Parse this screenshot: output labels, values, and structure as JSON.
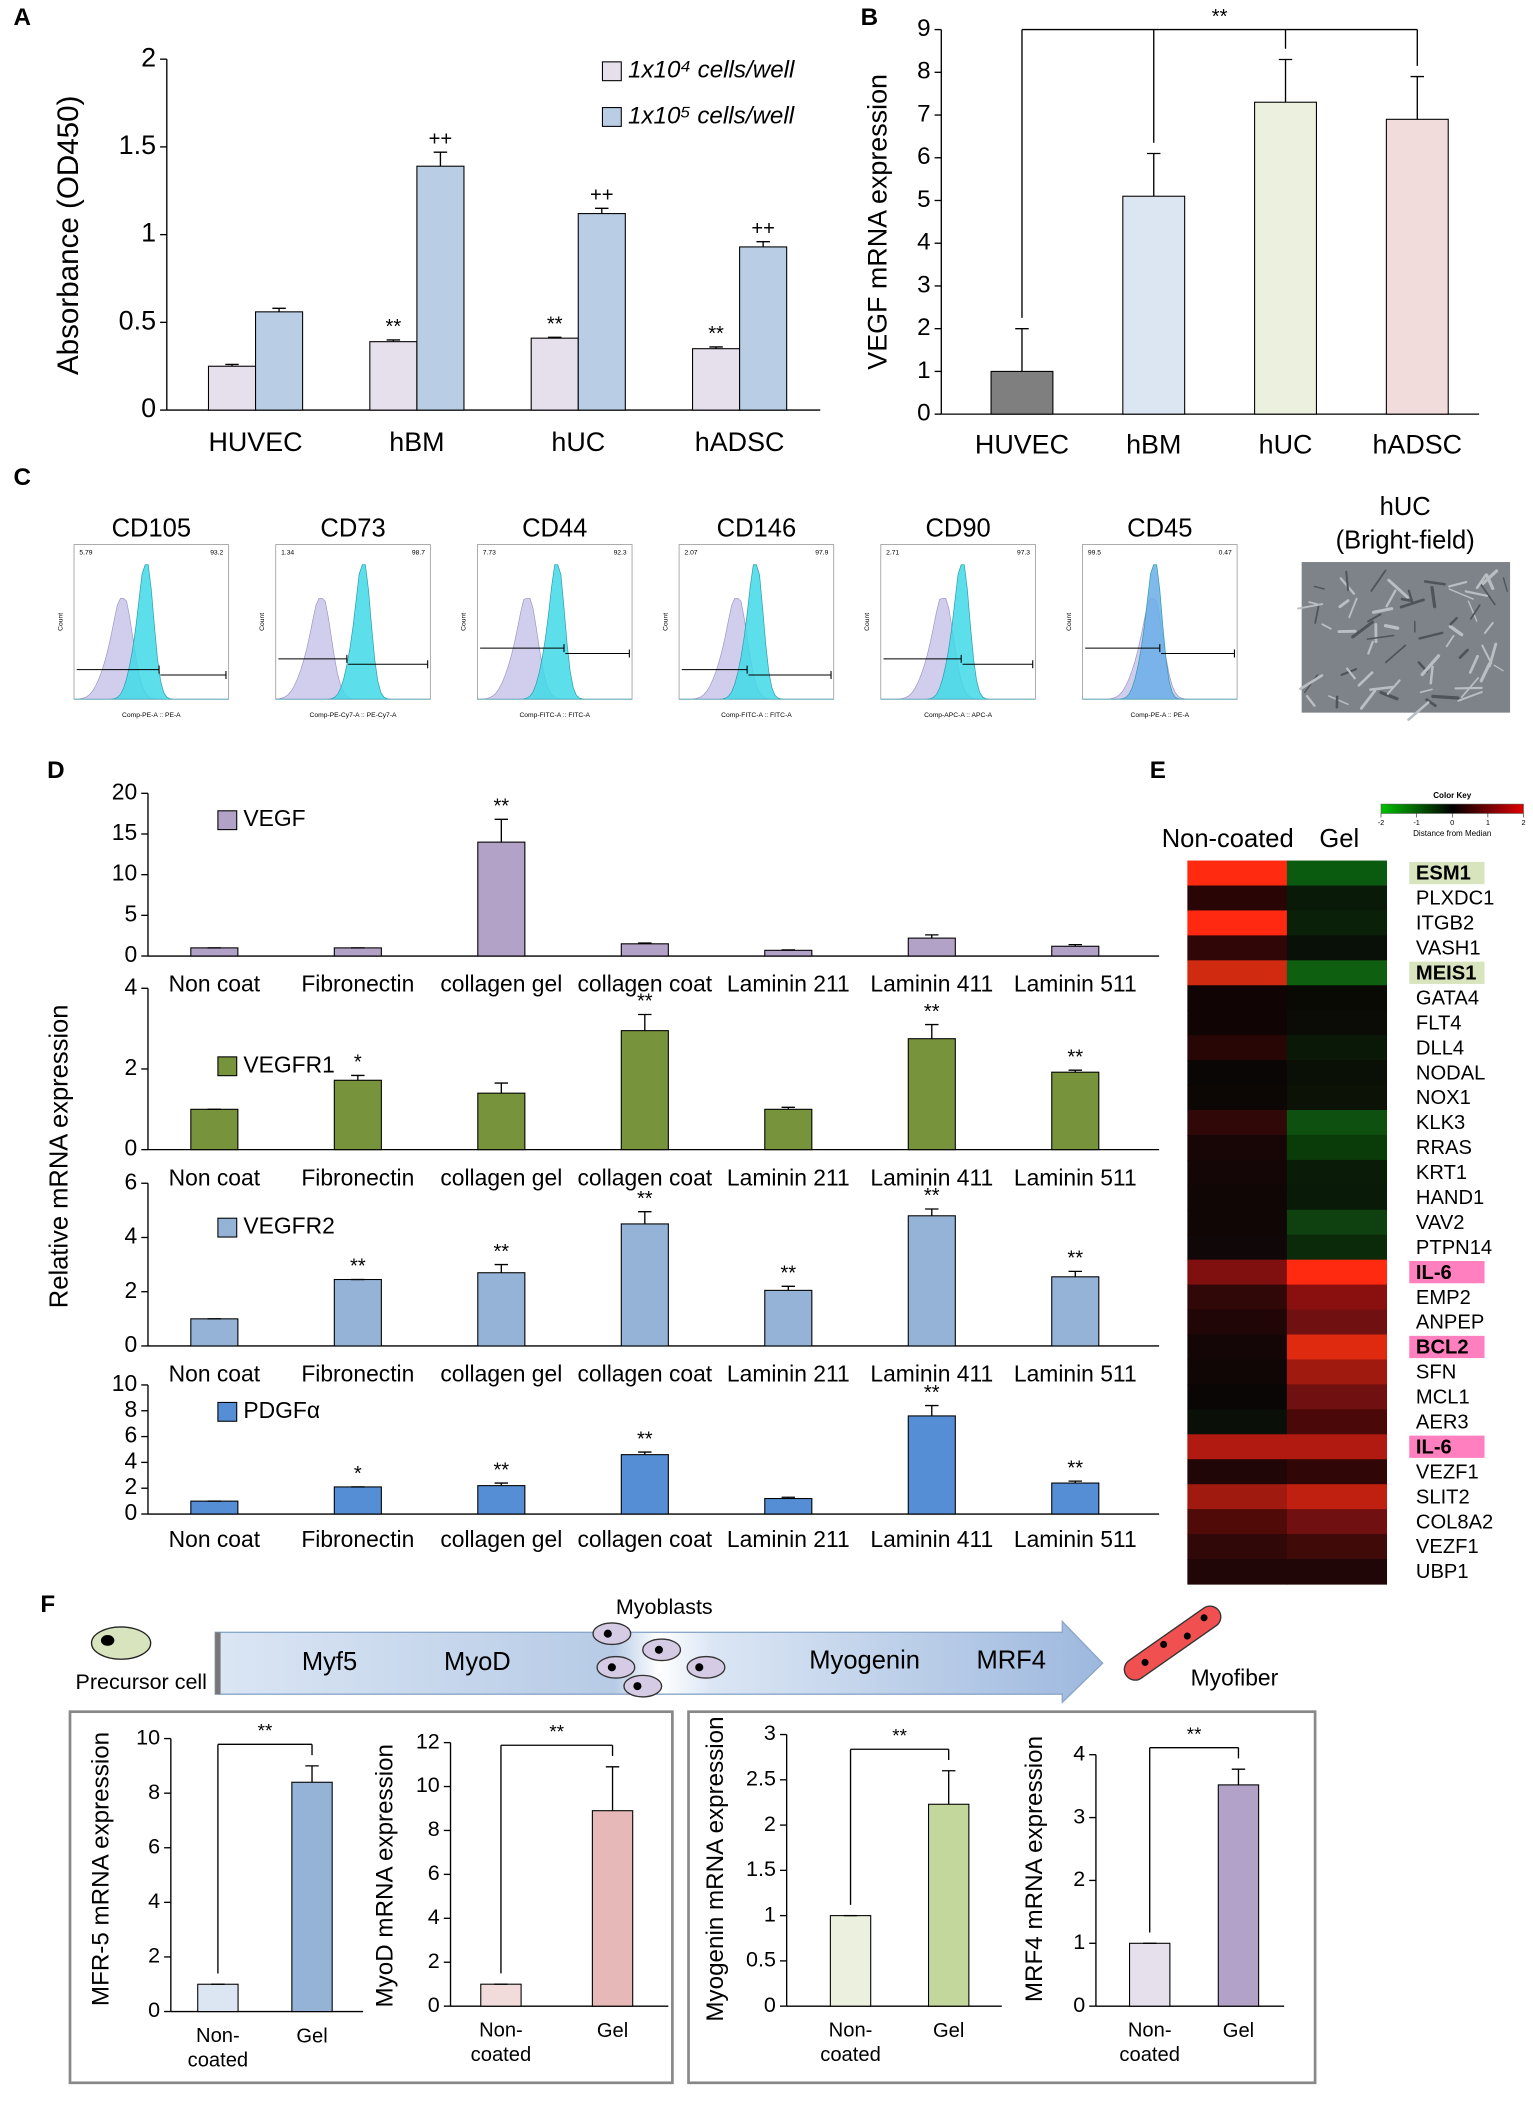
{
  "panels": [
    "A",
    "B",
    "C",
    "D",
    "E",
    "F"
  ],
  "chart_data": [
    {
      "type": "bar",
      "ylabel": "Absorbance (OD450)",
      "categories": [
        "HUVEC",
        "hBM",
        "hUC",
        "hADSC"
      ],
      "ylim": [
        0,
        2
      ],
      "yticks": [
        0,
        0.5,
        1,
        1.5,
        2
      ],
      "series": [
        {
          "name": "1x10⁴ cells/well",
          "color": "#e6e0ec",
          "values": [
            0.25,
            0.39,
            0.41,
            0.35
          ],
          "errors": [
            0.01,
            0.01,
            0.005,
            0.01
          ],
          "annotations": [
            null,
            "**",
            "**",
            "**"
          ]
        },
        {
          "name": "1x10⁵ cells/well",
          "color": "#b9cde5",
          "values": [
            0.56,
            1.39,
            1.12,
            0.93
          ],
          "errors": [
            0.02,
            0.08,
            0.03,
            0.03
          ],
          "annotations": [
            null,
            "++",
            "++",
            "++"
          ]
        }
      ]
    },
    {
      "type": "bar",
      "ylabel": "VEGF mRNA expression",
      "categories": [
        "HUVEC",
        "hBM",
        "hUC",
        "hADSC"
      ],
      "ylim": [
        0,
        9
      ],
      "yticks": [
        0,
        1,
        2,
        3,
        4,
        5,
        6,
        7,
        8,
        9
      ],
      "bracket": "**",
      "series": [
        {
          "colors": [
            "#7f7f7f",
            "#dce6f2",
            "#ebf1de",
            "#f2dcdb"
          ],
          "values": [
            1,
            5.1,
            7.3,
            6.9
          ],
          "errors": [
            1,
            1,
            1,
            1
          ]
        }
      ]
    },
    {
      "type": "bar",
      "ylabel": "Relative mRNA expression",
      "categories": [
        "Non coat",
        "Fibronectin",
        "collagen gel",
        "collagen coat",
        "Laminin 211",
        "Laminin 411",
        "Laminin 511"
      ],
      "ylim": [
        0,
        20
      ],
      "yticks": [
        0,
        5,
        10,
        15,
        20
      ],
      "series": [
        {
          "name": "VEGF",
          "color": "#b3a2c7",
          "values": [
            1,
            1,
            14,
            1.5,
            0.7,
            2.2,
            1.2
          ],
          "errors": [
            0,
            0,
            2.8,
            0.1,
            0.05,
            0.4,
            0.2
          ],
          "annotations": [
            null,
            null,
            "**",
            null,
            null,
            null,
            null
          ]
        }
      ]
    },
    {
      "type": "bar",
      "categories": [
        "Non coat",
        "Fibronectin",
        "collagen gel",
        "collagen coat",
        "Laminin 211",
        "Laminin 411",
        "Laminin 511"
      ],
      "ylim": [
        0,
        4
      ],
      "yticks": [
        0,
        2,
        4
      ],
      "series": [
        {
          "name": "VEGFR1",
          "color": "#77933c",
          "values": [
            1,
            1.72,
            1.4,
            2.95,
            1,
            2.75,
            1.92
          ],
          "errors": [
            0,
            0.12,
            0.25,
            0.4,
            0.05,
            0.35,
            0.05
          ],
          "annotations": [
            null,
            "*",
            null,
            "**",
            null,
            "**",
            "**"
          ]
        }
      ]
    },
    {
      "type": "bar",
      "categories": [
        "Non coat",
        "Fibronectin",
        "collagen gel",
        "collagen coat",
        "Laminin 211",
        "Laminin 411",
        "Laminin 511"
      ],
      "ylim": [
        0,
        6
      ],
      "yticks": [
        0,
        2,
        4,
        6
      ],
      "series": [
        {
          "name": "VEGFR2",
          "color": "#95b3d7",
          "values": [
            1,
            2.45,
            2.7,
            4.5,
            2.05,
            4.8,
            2.55
          ],
          "errors": [
            0,
            0,
            0.3,
            0.45,
            0.15,
            0.25,
            0.2
          ],
          "annotations": [
            null,
            "**",
            "**",
            "**",
            "**",
            "**",
            "**"
          ]
        }
      ]
    },
    {
      "type": "bar",
      "categories": [
        "Non coat",
        "Fibronectin",
        "collagen gel",
        "collagen coat",
        "Laminin 211",
        "Laminin 411",
        "Laminin 511"
      ],
      "ylim": [
        0,
        10
      ],
      "yticks": [
        0,
        2,
        4,
        6,
        8,
        10
      ],
      "series": [
        {
          "name": "PDGFα",
          "color": "#558ed5",
          "values": [
            1,
            2.1,
            2.2,
            4.6,
            1.2,
            7.6,
            2.4
          ],
          "errors": [
            0,
            0,
            0.2,
            0.2,
            0.1,
            0.8,
            0.15
          ],
          "annotations": [
            null,
            "*",
            "**",
            "**",
            null,
            "**",
            "**"
          ]
        }
      ]
    },
    {
      "type": "bar",
      "ylabel": "MFR-5 mRNA expression",
      "categories": [
        "Non-coated",
        "Gel"
      ],
      "ylim": [
        0,
        10
      ],
      "yticks": [
        0,
        2,
        4,
        6,
        8,
        10
      ],
      "bracket": "**",
      "series": [
        {
          "colors": [
            "#dce6f2",
            "#95b3d7"
          ],
          "values": [
            1,
            8.4
          ],
          "errors": [
            0,
            0.6
          ]
        }
      ]
    },
    {
      "type": "bar",
      "ylabel": "MyoD mRNA expression",
      "categories": [
        "Non-coated",
        "Gel"
      ],
      "ylim": [
        0,
        12
      ],
      "yticks": [
        0,
        2,
        4,
        6,
        8,
        10,
        12
      ],
      "bracket": "**",
      "series": [
        {
          "colors": [
            "#f2dcdb",
            "#e6b9b8"
          ],
          "values": [
            1,
            8.9
          ],
          "errors": [
            0,
            2
          ]
        }
      ]
    },
    {
      "type": "bar",
      "ylabel": "Myogenin mRNA expression",
      "categories": [
        "Non-coated",
        "Gel"
      ],
      "ylim": [
        0,
        3
      ],
      "yticks": [
        0,
        0.5,
        1,
        1.5,
        2,
        2.5,
        3
      ],
      "bracket": "**",
      "series": [
        {
          "colors": [
            "#ebf1de",
            "#c3d69b"
          ],
          "values": [
            1,
            2.23
          ],
          "errors": [
            0,
            0.37
          ]
        }
      ]
    },
    {
      "type": "bar",
      "ylabel": "MRF4 mRNA expression",
      "categories": [
        "Non-coated",
        "Gel"
      ],
      "ylim": [
        0,
        4
      ],
      "yticks": [
        0,
        1,
        2,
        3,
        4
      ],
      "bracket": "**",
      "series": [
        {
          "colors": [
            "#e6e0ec",
            "#b3a2c7"
          ],
          "values": [
            1,
            3.52
          ],
          "errors": [
            0,
            0.25
          ]
        }
      ]
    }
  ],
  "flow_cytometry": [
    {
      "title": "CD105",
      "xlabel": "Comp-PE-A :: PE-A",
      "ylabel": "Count",
      "gate": [
        "5.79",
        "93.2"
      ],
      "colors": [
        "#c9c4ea",
        "#3fd9e6"
      ]
    },
    {
      "title": "CD73",
      "xlabel": "Comp-PE-Cy7-A :: PE-Cy7-A",
      "ylabel": "Count",
      "gate": [
        "1.34",
        "98.7"
      ],
      "colors": [
        "#c9c4ea",
        "#3fd9e6"
      ]
    },
    {
      "title": "CD44",
      "xlabel": "Comp-FITC-A :: FITC-A",
      "ylabel": "Count",
      "gate": [
        "7.73",
        "92.3"
      ],
      "colors": [
        "#c9c4ea",
        "#3fd9e6"
      ]
    },
    {
      "title": "CD146",
      "xlabel": "Comp-FITC-A :: FITC-A",
      "ylabel": "Count",
      "gate": [
        "2.07",
        "97.9"
      ],
      "colors": [
        "#c9c4ea",
        "#3fd9e6"
      ]
    },
    {
      "title": "CD90",
      "xlabel": "Comp-APC-A :: APC-A",
      "ylabel": "Count",
      "gate": [
        "2.71",
        "97.3"
      ],
      "colors": [
        "#c9c4ea",
        "#3fd9e6"
      ]
    },
    {
      "title": "CD45",
      "xlabel": "Comp-PE-A :: PE-A",
      "ylabel": "Count",
      "gate": [
        "99.5",
        "0.47"
      ],
      "colors": [
        "#c9c4ea",
        "#6aaee8"
      ]
    }
  ],
  "brightfield": {
    "title_lines": [
      "hUC",
      "(Bright-field)"
    ]
  },
  "heatmap": {
    "columns": [
      "Non-coated",
      "Gel"
    ],
    "color_key": {
      "title": "Color Key",
      "label": "Distance from Median",
      "ticks": [
        -2,
        -1,
        0,
        1,
        2
      ],
      "colors": [
        "#00c000",
        "#000000",
        "#e00000"
      ]
    },
    "rows": [
      {
        "gene": "ESM1",
        "colors": [
          "#ff2a10",
          "#0a5a10"
        ],
        "highlight": "#d7e4bd"
      },
      {
        "gene": "PLXDC1",
        "colors": [
          "#2a0505",
          "#0a1a08"
        ]
      },
      {
        "gene": "ITGB2",
        "colors": [
          "#ff2810",
          "#0a2008"
        ]
      },
      {
        "gene": "VASH1",
        "colors": [
          "#300606",
          "#081008"
        ]
      },
      {
        "gene": "MEIS1",
        "colors": [
          "#d02a10",
          "#0e6010"
        ],
        "highlight": "#d7e4bd"
      },
      {
        "gene": "GATA4",
        "colors": [
          "#100404",
          "#0a0a05"
        ]
      },
      {
        "gene": "FLT4",
        "colors": [
          "#100404",
          "#0c0c06"
        ]
      },
      {
        "gene": "DLL4",
        "colors": [
          "#280606",
          "#0a1808"
        ]
      },
      {
        "gene": "NODAL",
        "colors": [
          "#0a0605",
          "#0a1006"
        ]
      },
      {
        "gene": "NOX1",
        "colors": [
          "#0c0605",
          "#0c1206"
        ]
      },
      {
        "gene": "KLK3",
        "colors": [
          "#300808",
          "#0e5010"
        ]
      },
      {
        "gene": "RRAS",
        "colors": [
          "#180606",
          "#0a3c0a"
        ]
      },
      {
        "gene": "KRT1",
        "colors": [
          "#140606",
          "#0a1c08"
        ]
      },
      {
        "gene": "HAND1",
        "colors": [
          "#100606",
          "#0a1a08"
        ]
      },
      {
        "gene": "VAV2",
        "colors": [
          "#100606",
          "#0e4010"
        ]
      },
      {
        "gene": "PTPN14",
        "colors": [
          "#100808",
          "#0a2a0a"
        ]
      },
      {
        "gene": "IL-6",
        "colors": [
          "#801010",
          "#ff2a10"
        ],
        "highlight": "#ff7fbf"
      },
      {
        "gene": "EMP2",
        "colors": [
          "#300808",
          "#8a1010"
        ]
      },
      {
        "gene": "ANPEP",
        "colors": [
          "#200606",
          "#701010"
        ]
      },
      {
        "gene": "BCL2",
        "colors": [
          "#140606",
          "#e02a10"
        ],
        "highlight": "#ff7fbf"
      },
      {
        "gene": "SFN",
        "colors": [
          "#100606",
          "#a01a10"
        ]
      },
      {
        "gene": "MCL1",
        "colors": [
          "#0a0606",
          "#701010"
        ]
      },
      {
        "gene": "AER3",
        "colors": [
          "#0a1008",
          "#4a0808"
        ]
      },
      {
        "gene": "IL-6",
        "colors": [
          "#b01a10",
          "#b01a10"
        ],
        "highlight": "#ff7fbf"
      },
      {
        "gene": "VEZF1",
        "colors": [
          "#200606",
          "#300606"
        ]
      },
      {
        "gene": "SLIT2",
        "colors": [
          "#a01a10",
          "#c02010"
        ]
      },
      {
        "gene": "COL8A2",
        "colors": [
          "#500a08",
          "#701010"
        ]
      },
      {
        "gene": "VEZF1",
        "colors": [
          "#300808",
          "#400a08"
        ]
      },
      {
        "gene": "UBP1",
        "colors": [
          "#200606",
          "#200606"
        ]
      }
    ]
  },
  "diagram": {
    "precursor": "Precursor cell",
    "stage1": [
      "Myf5",
      "MyoD"
    ],
    "myoblasts": "Myoblasts",
    "stage2": [
      "Myogenin",
      "MRF4"
    ],
    "myofiber": "Myofiber"
  }
}
